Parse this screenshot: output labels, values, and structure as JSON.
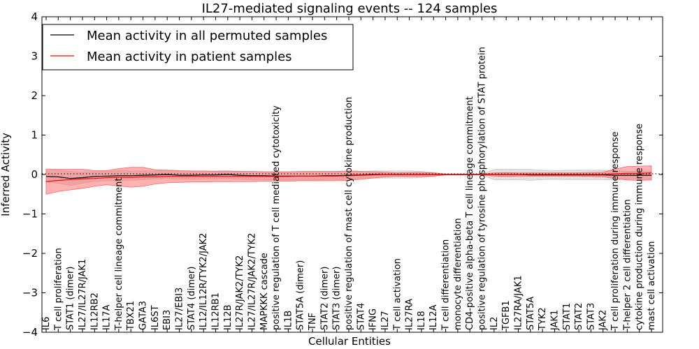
{
  "chart_data": {
    "type": "line",
    "title": "IL27-mediated signaling events -- 124 samples",
    "xlabel": "Cellular Entities",
    "ylabel": "Inferred Activity",
    "ylim": [
      -4,
      4
    ],
    "yticks": [
      "4",
      "3",
      "2",
      "1",
      "0",
      "−1",
      "−2",
      "−3",
      "−4"
    ],
    "ytick_values": [
      4,
      3,
      2,
      1,
      0,
      -1,
      -2,
      -3,
      -4
    ],
    "legend_position": "top-left",
    "categories": [
      "IL6",
      "T cell proliferation",
      "STAT1 (dimer)",
      "IL27/IL27R/JAK1",
      "IL12RB2",
      "IL17A",
      "T-helper cell lineage commitment",
      "TBX21",
      "GATA3",
      "IL6ST",
      "EBI3",
      "IL27/EBI3",
      "STAT4 (dimer)",
      "IL12/IL12R/TYK2/JAK2",
      "IL12RB1",
      "IL12B",
      "IL27R/JAK2/TYK2",
      "IL27/IL27R/JAK2/TYK2",
      "MAPKKK cascade",
      "positive regulation of T cell mediated cytotoxicity",
      "IL1B",
      "STAT5A (dimer)",
      "TNF",
      "STAT2 (dimer)",
      "STAT3 (dimer)",
      "positive regulation of mast cell cytokine production",
      "STAT4",
      "IFNG",
      "IL27",
      "T cell activation",
      "IL27RA",
      "IL18",
      "IL12A",
      "T cell differentiation",
      "monocyte differentiation",
      "CD4-positive alpha-beta T cell lineage commitment",
      "positive regulation of tyrosine phosphorylation of STAT protein",
      "IL2",
      "TGFB1",
      "IL27RA/JAK1",
      "STAT5A",
      "TYK2",
      "JAK1",
      "STAT1",
      "STAT2",
      "STAT3",
      "JAK2",
      "T cell proliferation during immune response",
      "T-helper 2 cell differentiation",
      "cytokine production during immune response",
      "mast cell activation"
    ],
    "series": [
      {
        "name": "Mean activity in all permuted samples",
        "color": "#000000",
        "band_color": "#c8c8c8",
        "values": [
          -0.05,
          -0.06,
          -0.1,
          -0.08,
          -0.05,
          -0.04,
          -0.03,
          -0.03,
          -0.02,
          -0.01,
          0.0,
          -0.02,
          -0.02,
          -0.01,
          -0.01,
          0.0,
          -0.02,
          -0.03,
          -0.03,
          -0.04,
          -0.04,
          -0.04,
          -0.04,
          -0.03,
          -0.03,
          -0.02,
          -0.01,
          0.0,
          0.0,
          0.0,
          0.0,
          0.0,
          0.0,
          0.0,
          0.0,
          0.0,
          0.0,
          0.0,
          0.0,
          0.0,
          -0.01,
          -0.01,
          -0.01,
          -0.01,
          -0.01,
          -0.01,
          -0.01,
          -0.02,
          -0.02,
          -0.02,
          -0.02
        ],
        "band": [
          0.14,
          0.16,
          0.18,
          0.14,
          0.12,
          0.12,
          0.13,
          0.12,
          0.11,
          0.1,
          0.1,
          0.1,
          0.1,
          0.1,
          0.1,
          0.1,
          0.1,
          0.1,
          0.1,
          0.1,
          0.1,
          0.1,
          0.1,
          0.1,
          0.1,
          0.1,
          0.08,
          0.09,
          0.09,
          0.09,
          0.09,
          0.08,
          0.05,
          0.01,
          0.01,
          0.01,
          0.01,
          0.13,
          0.14,
          0.13,
          0.14,
          0.12,
          0.11,
          0.12,
          0.12,
          0.12,
          0.12,
          0.12,
          0.1,
          0.1,
          0.1
        ]
      },
      {
        "name": "Mean activity in patient samples",
        "color": "#ff0000",
        "band_color": "#ff6666",
        "values": [
          -0.18,
          -0.15,
          -0.13,
          -0.11,
          -0.1,
          -0.08,
          -0.07,
          -0.07,
          -0.06,
          -0.06,
          -0.05,
          -0.05,
          -0.05,
          -0.05,
          -0.05,
          -0.05,
          -0.05,
          -0.05,
          -0.05,
          -0.05,
          -0.05,
          -0.04,
          -0.04,
          -0.04,
          -0.04,
          -0.03,
          -0.02,
          -0.01,
          0.0,
          0.0,
          0.0,
          0.0,
          0.0,
          0.0,
          0.0,
          0.0,
          0.0,
          0.0,
          0.0,
          0.0,
          0.0,
          0.0,
          0.0,
          0.0,
          0.0,
          0.0,
          0.0,
          0.02,
          0.03,
          0.03,
          0.04
        ],
        "band": [
          0.32,
          0.28,
          0.26,
          0.24,
          0.2,
          0.18,
          0.22,
          0.25,
          0.24,
          0.18,
          0.16,
          0.15,
          0.14,
          0.14,
          0.13,
          0.13,
          0.13,
          0.13,
          0.12,
          0.12,
          0.12,
          0.12,
          0.12,
          0.12,
          0.12,
          0.12,
          0.1,
          0.08,
          0.06,
          0.04,
          0.05,
          0.05,
          0.04,
          0.01,
          0.01,
          0.01,
          0.01,
          0.04,
          0.05,
          0.04,
          0.04,
          0.04,
          0.04,
          0.04,
          0.04,
          0.05,
          0.06,
          0.12,
          0.17,
          0.18,
          0.18
        ]
      }
    ]
  }
}
